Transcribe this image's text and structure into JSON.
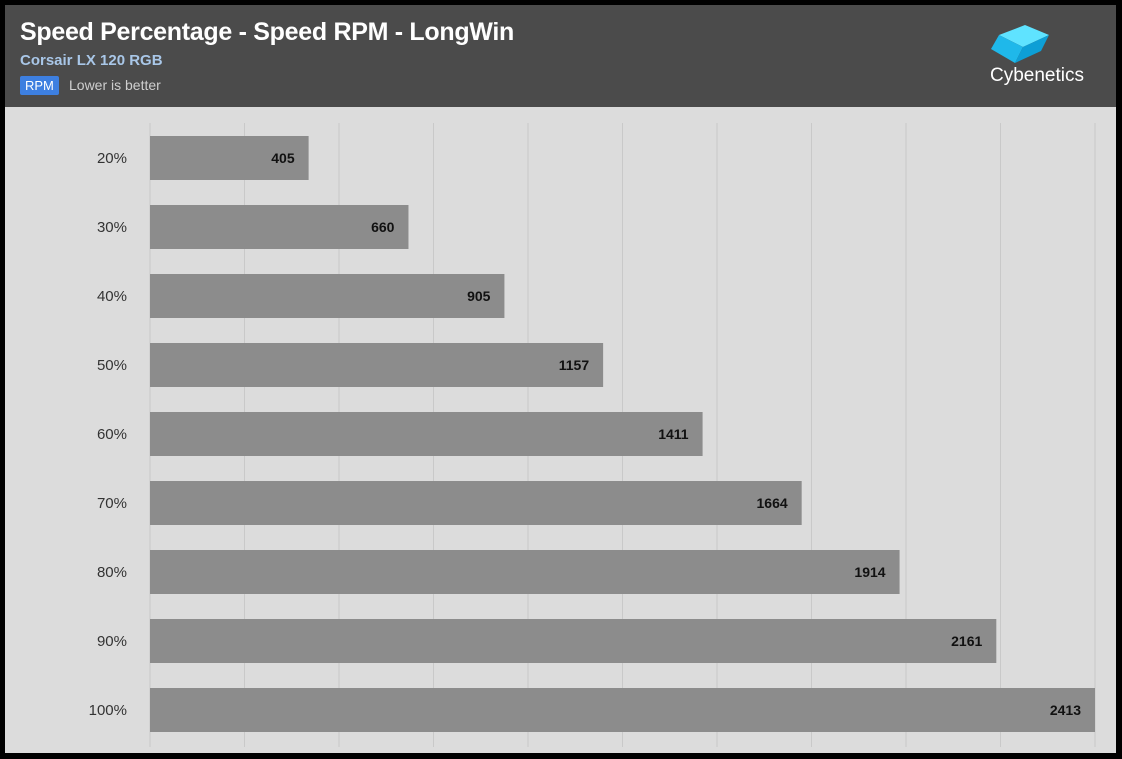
{
  "header": {
    "title": "Speed Percentage - Speed RPM - LongWin",
    "subtitle": "Corsair LX 120 RGB",
    "unit_badge": "RPM",
    "note": "Lower is better"
  },
  "logo": {
    "text": "Cybenetics",
    "icon": "cube-logo-icon"
  },
  "colors": {
    "bar": "#8c8c8c",
    "background": "#dcdcdc",
    "header": "#4b4b4b",
    "grid": "#c9c9c9",
    "badge": "#3d7fe0"
  },
  "chart_data": {
    "type": "bar",
    "orientation": "horizontal",
    "categories": [
      "20%",
      "30%",
      "40%",
      "50%",
      "60%",
      "70%",
      "80%",
      "90%",
      "100%"
    ],
    "values": [
      405,
      660,
      905,
      1157,
      1411,
      1664,
      1914,
      2161,
      2413
    ],
    "xlim": [
      0,
      2413
    ],
    "grid": true,
    "legend": "none"
  }
}
